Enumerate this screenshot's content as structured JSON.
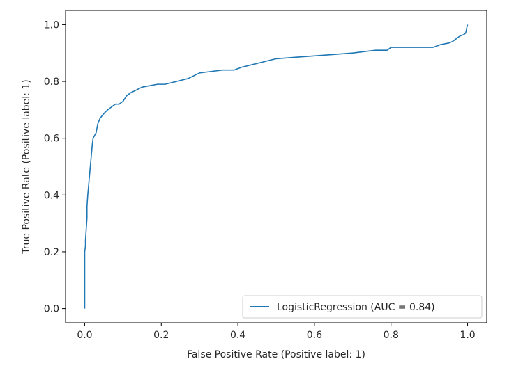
{
  "chart_data": {
    "type": "line",
    "title": "",
    "xlabel": "False Positive Rate (Positive label: 1)",
    "ylabel": "True Positive Rate (Positive label: 1)",
    "xlim": [
      -0.05,
      1.05
    ],
    "ylim": [
      -0.05,
      1.05
    ],
    "xticks": [
      0.0,
      0.2,
      0.4,
      0.6,
      0.8,
      1.0
    ],
    "xtick_labels": [
      "0.0",
      "0.2",
      "0.4",
      "0.6",
      "0.8",
      "1.0"
    ],
    "yticks": [
      0.0,
      0.2,
      0.4,
      0.6,
      0.8,
      1.0
    ],
    "ytick_labels": [
      "0.0",
      "0.2",
      "0.4",
      "0.6",
      "0.8",
      "1.0"
    ],
    "grid": false,
    "legend": "lower-right",
    "line_color": "#1f77b4",
    "series": [
      {
        "name": "LogisticRegression (AUC = 0.84)",
        "x": [
          0.0,
          0.0,
          0.002,
          0.002,
          0.004,
          0.006,
          0.006,
          0.008,
          0.01,
          0.012,
          0.014,
          0.016,
          0.018,
          0.02,
          0.022,
          0.026,
          0.03,
          0.034,
          0.04,
          0.046,
          0.052,
          0.06,
          0.07,
          0.08,
          0.09,
          0.1,
          0.11,
          0.12,
          0.135,
          0.15,
          0.17,
          0.19,
          0.21,
          0.24,
          0.27,
          0.3,
          0.33,
          0.36,
          0.39,
          0.41,
          0.44,
          0.47,
          0.5,
          0.55,
          0.6,
          0.65,
          0.7,
          0.73,
          0.76,
          0.79,
          0.8,
          0.83,
          0.86,
          0.89,
          0.91,
          0.93,
          0.95,
          0.96,
          0.97,
          0.98,
          0.99,
          0.995,
          0.998,
          1.0
        ],
        "y": [
          0.0,
          0.2,
          0.22,
          0.24,
          0.28,
          0.32,
          0.36,
          0.4,
          0.43,
          0.46,
          0.49,
          0.52,
          0.55,
          0.58,
          0.6,
          0.61,
          0.62,
          0.65,
          0.67,
          0.68,
          0.69,
          0.7,
          0.71,
          0.72,
          0.72,
          0.73,
          0.75,
          0.76,
          0.77,
          0.78,
          0.785,
          0.79,
          0.79,
          0.8,
          0.81,
          0.83,
          0.835,
          0.84,
          0.84,
          0.85,
          0.86,
          0.87,
          0.88,
          0.885,
          0.89,
          0.895,
          0.9,
          0.905,
          0.91,
          0.91,
          0.92,
          0.92,
          0.92,
          0.92,
          0.92,
          0.93,
          0.935,
          0.94,
          0.95,
          0.96,
          0.965,
          0.97,
          0.99,
          1.0
        ]
      }
    ]
  }
}
